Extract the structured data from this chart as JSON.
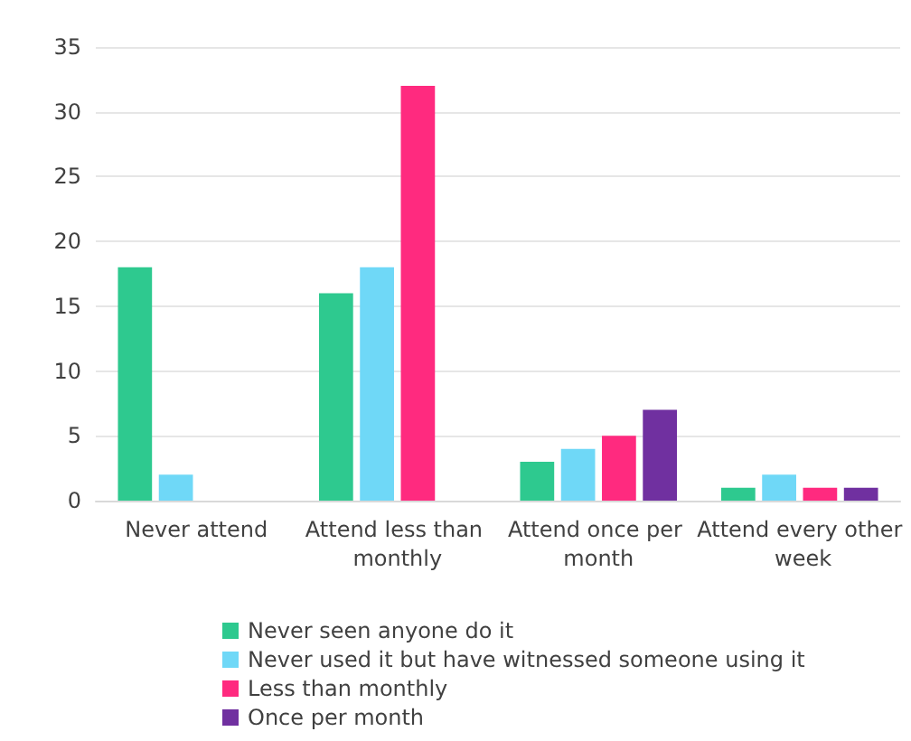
{
  "chart_data": {
    "type": "bar",
    "categories": [
      "Never attend",
      "Attend less than monthly",
      "Attend once per month",
      "Attend every other week"
    ],
    "series": [
      {
        "name": "Never seen anyone do it",
        "color": "#2ec98f",
        "values": [
          18,
          16,
          3,
          1
        ]
      },
      {
        "name": "Never used it but have witnessed someone using it",
        "color": "#6fd8f7",
        "values": [
          2,
          18,
          4,
          2
        ]
      },
      {
        "name": "Less than monthly",
        "color": "#ff2a7f",
        "values": [
          null,
          32,
          5,
          1
        ]
      },
      {
        "name": "Once per month",
        "color": "#7030a0",
        "values": [
          null,
          null,
          7,
          1
        ]
      }
    ],
    "ylim": [
      0,
      35
    ],
    "yticks": [
      0,
      5,
      10,
      15,
      20,
      25,
      30,
      35
    ],
    "grid": "y",
    "legend": "bottom"
  }
}
